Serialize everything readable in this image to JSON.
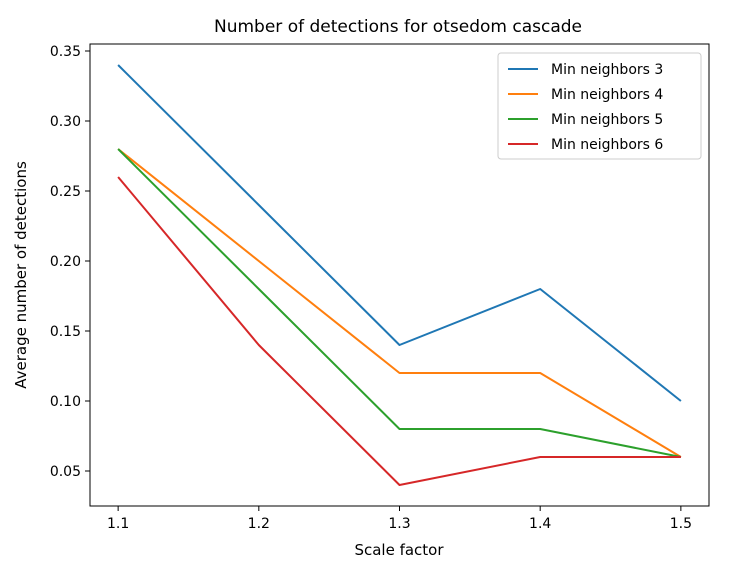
{
  "chart_data": {
    "type": "line",
    "title": "Number of detections for otsedom cascade",
    "xlabel": "Scale factor",
    "ylabel": "Average number of detections",
    "x": [
      1.1,
      1.2,
      1.3,
      1.4,
      1.5
    ],
    "x_tick_labels": [
      "1.1",
      "1.2",
      "1.3",
      "1.4",
      "1.5"
    ],
    "y_ticks": [
      0.05,
      0.1,
      0.15,
      0.2,
      0.25,
      0.3,
      0.35
    ],
    "y_tick_labels": [
      "0.05",
      "0.10",
      "0.15",
      "0.20",
      "0.25",
      "0.30",
      "0.35"
    ],
    "xlim": [
      1.08,
      1.52
    ],
    "ylim": [
      0.025,
      0.355
    ],
    "grid": false,
    "legend_position": "top-right",
    "series": [
      {
        "name": "Min neighbors 3",
        "color": "#1f77b4",
        "values": [
          0.34,
          0.24,
          0.14,
          0.18,
          0.1
        ]
      },
      {
        "name": "Min neighbors 4",
        "color": "#ff7f0e",
        "values": [
          0.28,
          0.2,
          0.12,
          0.12,
          0.06
        ]
      },
      {
        "name": "Min neighbors 5",
        "color": "#2ca02c",
        "values": [
          0.28,
          0.18,
          0.08,
          0.08,
          0.06
        ]
      },
      {
        "name": "Min neighbors 6",
        "color": "#d62728",
        "values": [
          0.26,
          0.14,
          0.04,
          0.06,
          0.06
        ]
      }
    ]
  }
}
